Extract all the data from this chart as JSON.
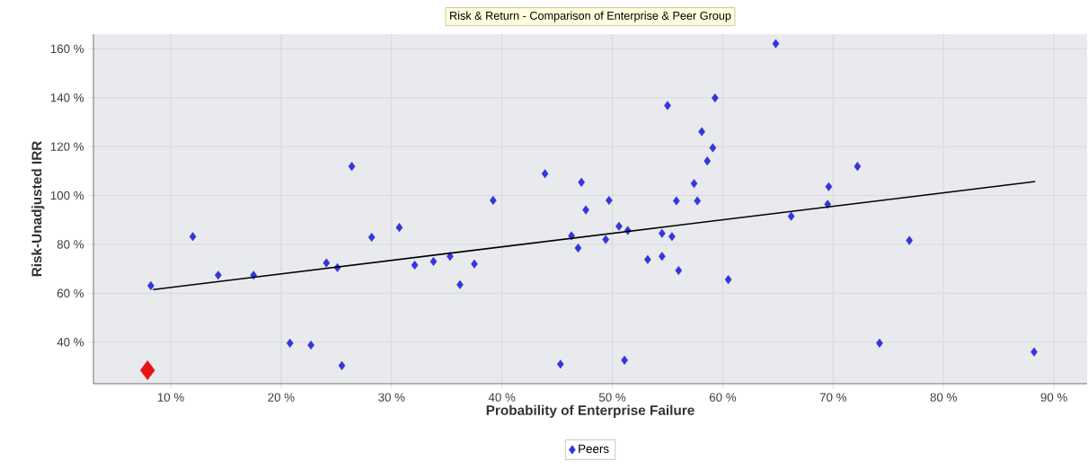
{
  "chart_data": {
    "type": "scatter",
    "title": "Risk & Return - Comparison of Enterprise & Peer Group",
    "xlabel": "Probability of Enterprise Failure",
    "ylabel": "Risk-Unadjusted IRR",
    "xlim": [
      3,
      93
    ],
    "ylim": [
      23,
      166
    ],
    "xticks": [
      {
        "value": 10,
        "label": "10 %"
      },
      {
        "value": 20,
        "label": "20 %"
      },
      {
        "value": 30,
        "label": "30 %"
      },
      {
        "value": 40,
        "label": "40 %"
      },
      {
        "value": 50,
        "label": "50 %"
      },
      {
        "value": 60,
        "label": "60 %"
      },
      {
        "value": 70,
        "label": "70 %"
      },
      {
        "value": 80,
        "label": "80 %"
      },
      {
        "value": 90,
        "label": "90 %"
      }
    ],
    "yticks": [
      {
        "value": 40,
        "label": "40 %"
      },
      {
        "value": 60,
        "label": "60 %"
      },
      {
        "value": 80,
        "label": "80 %"
      },
      {
        "value": 100,
        "label": "100 %"
      },
      {
        "value": 120,
        "label": "120 %"
      },
      {
        "value": 140,
        "label": "140 %"
      },
      {
        "value": 160,
        "label": "160 %"
      }
    ],
    "grid": true,
    "legend": "bottom",
    "marker": "diamond",
    "series": [
      {
        "name": "Peers",
        "color": "#3333ee",
        "x": [
          8.2,
          12.0,
          14.3,
          17.5,
          20.8,
          22.7,
          25.5,
          26.4,
          24.1,
          25.1,
          28.2,
          30.7,
          32.1,
          33.8,
          35.3,
          36.2,
          37.5,
          39.2,
          43.9,
          47.2,
          45.3,
          46.3,
          46.9,
          47.6,
          49.4,
          49.7,
          50.6,
          51.4,
          51.1,
          53.2,
          54.5,
          54.5,
          55.4,
          56.0,
          55.0,
          55.8,
          57.4,
          57.7,
          58.1,
          58.6,
          59.1,
          59.3,
          60.5,
          64.8,
          66.2,
          69.6,
          69.5,
          72.2,
          76.9,
          74.2,
          88.2
        ],
        "values": [
          63.1,
          83.2,
          67.4,
          67.4,
          39.6,
          38.8,
          30.4,
          111.9,
          72.4,
          70.5,
          82.9,
          86.9,
          71.5,
          73.0,
          75.1,
          63.5,
          72.0,
          98.0,
          108.9,
          105.4,
          31.0,
          83.5,
          78.5,
          94.1,
          82.0,
          98.0,
          87.4,
          85.7,
          32.6,
          73.8,
          75.1,
          84.5,
          83.2,
          69.3,
          136.8,
          97.8,
          104.9,
          97.8,
          126.1,
          114.1,
          119.5,
          139.9,
          65.6,
          162.1,
          91.5,
          103.6,
          96.4,
          111.9,
          81.6,
          39.6,
          36.0
        ]
      },
      {
        "color": "#ee1111",
        "x": [
          7.9
        ],
        "values": [
          28.5
        ]
      },
      {
        "type": "line",
        "color": "#000000",
        "marker": "none",
        "x": [
          8.4,
          88.3
        ],
        "values": [
          61.5,
          105.7
        ]
      }
    ]
  }
}
